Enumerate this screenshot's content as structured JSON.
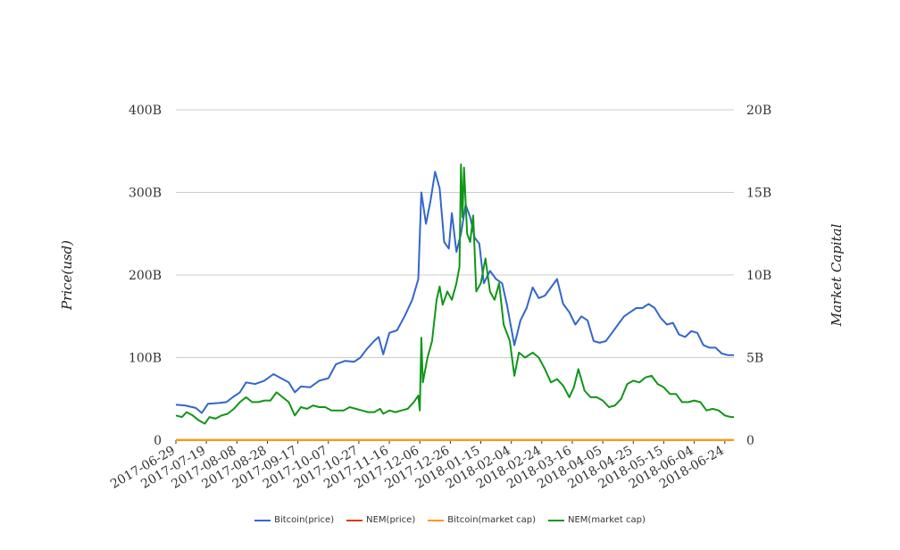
{
  "chart_data": {
    "type": "line",
    "title": "",
    "ylabel_left": "Price(usd)",
    "ylabel_right": "Market Capital",
    "x_start": "2017-06-29",
    "x_end": "2018-06-30",
    "x_ticks": [
      "2017-06-29",
      "2017-07-19",
      "2017-08-08",
      "2017-08-28",
      "2017-09-17",
      "2017-10-07",
      "2017-10-27",
      "2017-11-16",
      "2017-12-06",
      "2017-12-26",
      "2018-01-15",
      "2018-02-04",
      "2018-02-24",
      "2018-03-16",
      "2018-04-05",
      "2018-04-25",
      "2018-05-15",
      "2018-06-04",
      "2018-06-24"
    ],
    "y_left": {
      "min": 0,
      "max": 400000000000,
      "ticks": [
        0,
        100000000000,
        200000000000,
        300000000000,
        400000000000
      ],
      "tick_labels": [
        "0",
        "100B",
        "200B",
        "300B",
        "400B"
      ]
    },
    "y_right": {
      "min": 0,
      "max": 20000000000,
      "ticks": [
        0,
        5000000000,
        10000000000,
        15000000000,
        20000000000
      ],
      "tick_labels": [
        "0",
        "5B",
        "10B",
        "15B",
        "20B"
      ]
    },
    "grid": true,
    "legend_position": "bottom",
    "series": [
      {
        "name": "Bitcoin(price)",
        "color": "#3366cc",
        "axis": "left",
        "points": [
          [
            "2017-06-29",
            43
          ],
          [
            "2017-07-05",
            42
          ],
          [
            "2017-07-12",
            39
          ],
          [
            "2017-07-16",
            33
          ],
          [
            "2017-07-20",
            44
          ],
          [
            "2017-07-27",
            45
          ],
          [
            "2017-08-01",
            46
          ],
          [
            "2017-08-06",
            53
          ],
          [
            "2017-08-10",
            58
          ],
          [
            "2017-08-14",
            70
          ],
          [
            "2017-08-20",
            68
          ],
          [
            "2017-08-26",
            72
          ],
          [
            "2017-09-01",
            80
          ],
          [
            "2017-09-06",
            75
          ],
          [
            "2017-09-11",
            70
          ],
          [
            "2017-09-15",
            58
          ],
          [
            "2017-09-19",
            65
          ],
          [
            "2017-09-25",
            64
          ],
          [
            "2017-10-01",
            72
          ],
          [
            "2017-10-07",
            75
          ],
          [
            "2017-10-12",
            92
          ],
          [
            "2017-10-18",
            96
          ],
          [
            "2017-10-24",
            95
          ],
          [
            "2017-10-28",
            100
          ],
          [
            "2017-11-01",
            110
          ],
          [
            "2017-11-06",
            120
          ],
          [
            "2017-11-09",
            125
          ],
          [
            "2017-11-12",
            104
          ],
          [
            "2017-11-16",
            130
          ],
          [
            "2017-11-21",
            133
          ],
          [
            "2017-11-26",
            150
          ],
          [
            "2017-12-01",
            170
          ],
          [
            "2017-12-05",
            195
          ],
          [
            "2017-12-07",
            300
          ],
          [
            "2017-12-10",
            262
          ],
          [
            "2017-12-13",
            290
          ],
          [
            "2017-12-16",
            325
          ],
          [
            "2017-12-19",
            305
          ],
          [
            "2017-12-22",
            240
          ],
          [
            "2017-12-25",
            232
          ],
          [
            "2017-12-27",
            275
          ],
          [
            "2017-12-30",
            228
          ],
          [
            "2018-01-02",
            250
          ],
          [
            "2018-01-05",
            285
          ],
          [
            "2018-01-08",
            270
          ],
          [
            "2018-01-11",
            245
          ],
          [
            "2018-01-14",
            238
          ],
          [
            "2018-01-17",
            190
          ],
          [
            "2018-01-21",
            205
          ],
          [
            "2018-01-25",
            195
          ],
          [
            "2018-01-29",
            190
          ],
          [
            "2018-02-01",
            165
          ],
          [
            "2018-02-06",
            115
          ],
          [
            "2018-02-10",
            145
          ],
          [
            "2018-02-14",
            160
          ],
          [
            "2018-02-18",
            185
          ],
          [
            "2018-02-22",
            172
          ],
          [
            "2018-02-26",
            175
          ],
          [
            "2018-03-02",
            185
          ],
          [
            "2018-03-06",
            195
          ],
          [
            "2018-03-10",
            165
          ],
          [
            "2018-03-14",
            155
          ],
          [
            "2018-03-18",
            140
          ],
          [
            "2018-03-22",
            150
          ],
          [
            "2018-03-26",
            145
          ],
          [
            "2018-03-30",
            120
          ],
          [
            "2018-04-03",
            118
          ],
          [
            "2018-04-07",
            120
          ],
          [
            "2018-04-11",
            130
          ],
          [
            "2018-04-15",
            140
          ],
          [
            "2018-04-19",
            150
          ],
          [
            "2018-04-23",
            155
          ],
          [
            "2018-04-27",
            160
          ],
          [
            "2018-05-01",
            160
          ],
          [
            "2018-05-05",
            165
          ],
          [
            "2018-05-09",
            160
          ],
          [
            "2018-05-13",
            148
          ],
          [
            "2018-05-17",
            140
          ],
          [
            "2018-05-21",
            142
          ],
          [
            "2018-05-25",
            128
          ],
          [
            "2018-05-29",
            125
          ],
          [
            "2018-06-02",
            132
          ],
          [
            "2018-06-06",
            130
          ],
          [
            "2018-06-10",
            115
          ],
          [
            "2018-06-14",
            112
          ],
          [
            "2018-06-18",
            112
          ],
          [
            "2018-06-22",
            105
          ],
          [
            "2018-06-26",
            103
          ],
          [
            "2018-06-30",
            103
          ]
        ]
      },
      {
        "name": "NEM(price)",
        "color": "#dc3912",
        "axis": "left",
        "points": [
          [
            "2017-06-29",
            0.2
          ],
          [
            "2018-06-30",
            0.3
          ]
        ]
      },
      {
        "name": "Bitcoin(market cap)",
        "color": "#ff9900",
        "axis": "right",
        "points": [
          [
            "2017-06-29",
            0
          ],
          [
            "2018-06-30",
            0
          ]
        ]
      },
      {
        "name": "NEM(market cap)",
        "color": "#109618",
        "axis": "right",
        "points": [
          [
            "2017-06-29",
            1.5
          ],
          [
            "2017-07-03",
            1.4
          ],
          [
            "2017-07-06",
            1.7
          ],
          [
            "2017-07-10",
            1.5
          ],
          [
            "2017-07-14",
            1.2
          ],
          [
            "2017-07-18",
            1.0
          ],
          [
            "2017-07-21",
            1.4
          ],
          [
            "2017-07-25",
            1.3
          ],
          [
            "2017-07-29",
            1.5
          ],
          [
            "2017-08-02",
            1.6
          ],
          [
            "2017-08-06",
            1.9
          ],
          [
            "2017-08-10",
            2.3
          ],
          [
            "2017-08-14",
            2.6
          ],
          [
            "2017-08-18",
            2.3
          ],
          [
            "2017-08-22",
            2.3
          ],
          [
            "2017-08-26",
            2.4
          ],
          [
            "2017-08-30",
            2.4
          ],
          [
            "2017-09-03",
            2.9
          ],
          [
            "2017-09-07",
            2.6
          ],
          [
            "2017-09-11",
            2.3
          ],
          [
            "2017-09-15",
            1.5
          ],
          [
            "2017-09-19",
            2.0
          ],
          [
            "2017-09-23",
            1.9
          ],
          [
            "2017-09-27",
            2.1
          ],
          [
            "2017-10-01",
            2.0
          ],
          [
            "2017-10-05",
            2.0
          ],
          [
            "2017-10-09",
            1.8
          ],
          [
            "2017-10-13",
            1.8
          ],
          [
            "2017-10-17",
            1.8
          ],
          [
            "2017-10-21",
            2.0
          ],
          [
            "2017-10-25",
            1.9
          ],
          [
            "2017-10-29",
            1.8
          ],
          [
            "2017-11-02",
            1.7
          ],
          [
            "2017-11-06",
            1.7
          ],
          [
            "2017-11-10",
            1.9
          ],
          [
            "2017-11-12",
            1.6
          ],
          [
            "2017-11-16",
            1.8
          ],
          [
            "2017-11-20",
            1.7
          ],
          [
            "2017-11-24",
            1.8
          ],
          [
            "2017-11-28",
            1.9
          ],
          [
            "2017-12-02",
            2.3
          ],
          [
            "2017-12-05",
            2.7
          ],
          [
            "2017-12-06",
            1.8
          ],
          [
            "2017-12-07",
            6.2
          ],
          [
            "2017-12-08",
            3.5
          ],
          [
            "2017-12-11",
            5.0
          ],
          [
            "2017-12-14",
            6.0
          ],
          [
            "2017-12-17",
            8.5
          ],
          [
            "2017-12-19",
            9.3
          ],
          [
            "2017-12-21",
            8.2
          ],
          [
            "2017-12-24",
            9.0
          ],
          [
            "2017-12-27",
            8.5
          ],
          [
            "2017-12-30",
            9.5
          ],
          [
            "2018-01-01",
            10.5
          ],
          [
            "2018-01-02",
            16.7
          ],
          [
            "2018-01-03",
            13.5
          ],
          [
            "2018-01-04",
            16.5
          ],
          [
            "2018-01-06",
            12.5
          ],
          [
            "2018-01-08",
            12.0
          ],
          [
            "2018-01-10",
            13.6
          ],
          [
            "2018-01-12",
            9.0
          ],
          [
            "2018-01-15",
            9.5
          ],
          [
            "2018-01-18",
            11.0
          ],
          [
            "2018-01-21",
            9.0
          ],
          [
            "2018-01-24",
            8.5
          ],
          [
            "2018-01-27",
            9.5
          ],
          [
            "2018-01-30",
            7.0
          ],
          [
            "2018-02-03",
            6.0
          ],
          [
            "2018-02-06",
            3.9
          ],
          [
            "2018-02-09",
            5.3
          ],
          [
            "2018-02-13",
            5.0
          ],
          [
            "2018-02-18",
            5.3
          ],
          [
            "2018-02-22",
            5.0
          ],
          [
            "2018-02-26",
            4.3
          ],
          [
            "2018-03-02",
            3.5
          ],
          [
            "2018-03-06",
            3.7
          ],
          [
            "2018-03-10",
            3.3
          ],
          [
            "2018-03-14",
            2.6
          ],
          [
            "2018-03-17",
            3.2
          ],
          [
            "2018-03-20",
            4.3
          ],
          [
            "2018-03-24",
            3.0
          ],
          [
            "2018-03-28",
            2.6
          ],
          [
            "2018-04-01",
            2.6
          ],
          [
            "2018-04-05",
            2.4
          ],
          [
            "2018-04-09",
            2.0
          ],
          [
            "2018-04-13",
            2.1
          ],
          [
            "2018-04-17",
            2.5
          ],
          [
            "2018-04-21",
            3.4
          ],
          [
            "2018-04-25",
            3.6
          ],
          [
            "2018-04-29",
            3.5
          ],
          [
            "2018-05-03",
            3.8
          ],
          [
            "2018-05-07",
            3.9
          ],
          [
            "2018-05-11",
            3.4
          ],
          [
            "2018-05-15",
            3.2
          ],
          [
            "2018-05-19",
            2.8
          ],
          [
            "2018-05-23",
            2.8
          ],
          [
            "2018-05-27",
            2.3
          ],
          [
            "2018-05-31",
            2.3
          ],
          [
            "2018-06-04",
            2.4
          ],
          [
            "2018-06-08",
            2.3
          ],
          [
            "2018-06-12",
            1.8
          ],
          [
            "2018-06-16",
            1.9
          ],
          [
            "2018-06-20",
            1.8
          ],
          [
            "2018-06-24",
            1.5
          ],
          [
            "2018-06-28",
            1.4
          ],
          [
            "2018-06-30",
            1.4
          ]
        ]
      }
    ]
  }
}
